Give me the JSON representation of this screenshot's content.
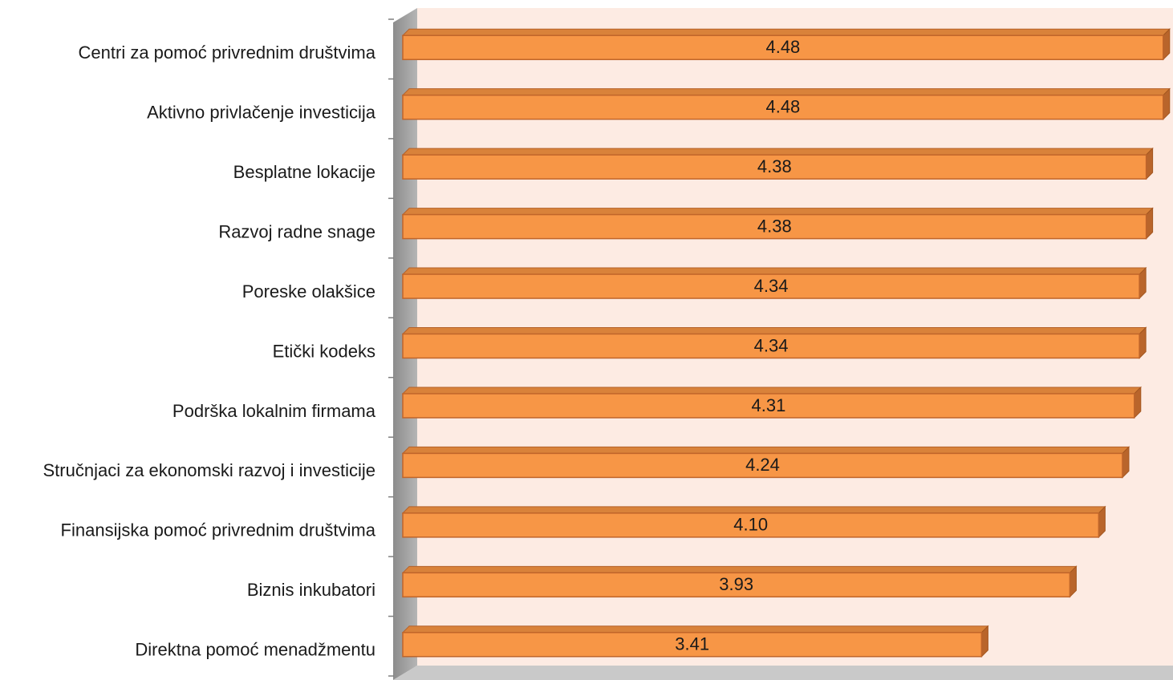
{
  "chart_data": {
    "type": "bar",
    "orientation": "horizontal",
    "categories": [
      "Centri za pomoć privrednim društvima",
      "Aktivno privlačenje investicija",
      "Besplatne lokacije",
      "Razvoj radne snage",
      "Poreske olakšice",
      "Etički kodeks",
      "Podrška lokalnim firmama",
      "Stručnjaci za ekonomski razvoj i investicije",
      "Finansijska pomoć privrednim društvima",
      "Biznis inkubatori",
      "Direktna pomoć menadžmentu"
    ],
    "values": [
      4.48,
      4.48,
      4.38,
      4.38,
      4.34,
      4.34,
      4.31,
      4.24,
      4.1,
      3.93,
      3.41
    ],
    "value_labels": [
      "4.48",
      "4.48",
      "4.38",
      "4.38",
      "4.34",
      "4.34",
      "4.31",
      "4.24",
      "4.10",
      "3.93",
      "3.41"
    ],
    "color": "#f79646",
    "xlim": [
      0,
      4.5
    ]
  }
}
